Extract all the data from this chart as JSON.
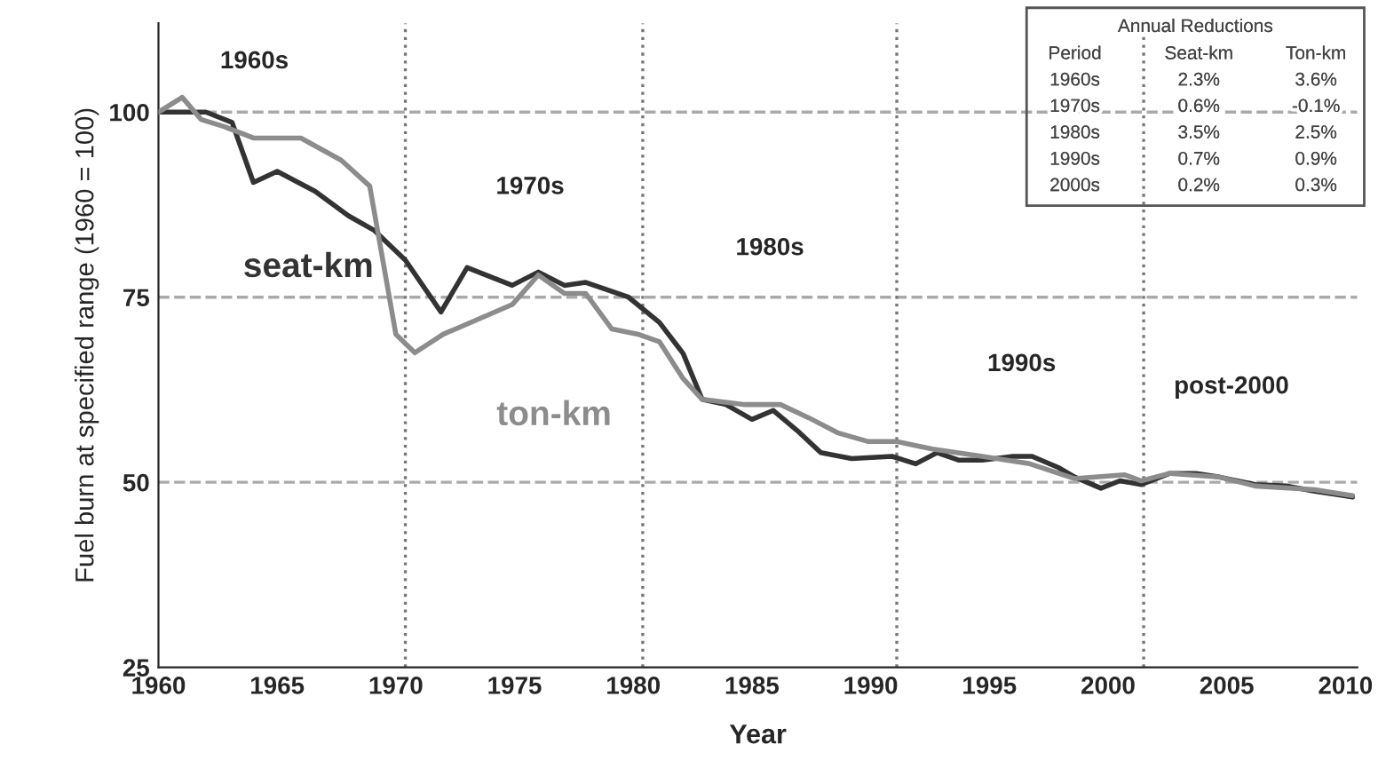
{
  "chart_data": {
    "type": "line",
    "xlabel": "Year",
    "ylabel": "Fuel burn at specified range (1960 = 100)",
    "xlim": [
      1960,
      2010.5
    ],
    "xticks": [
      1960,
      1965,
      1970,
      1975,
      1980,
      1985,
      1990,
      1995,
      2000,
      2005,
      2010
    ],
    "ylim": [
      25,
      112
    ],
    "yticks": [
      25,
      50,
      75,
      100
    ],
    "grid": false,
    "legend": false,
    "line_style": "solid",
    "marker": "none",
    "series": [
      {
        "name": "seat-km",
        "color": "#333333",
        "x": [
          1960,
          1962,
          1963.1,
          1964,
          1965,
          1966.6,
          1968,
          1969.1,
          1970.4,
          1971.9,
          1973,
          1974.9,
          1976,
          1977.1,
          1978,
          1979.8,
          1981.1,
          1982.1,
          1982.9,
          1983.9,
          1985,
          1985.9,
          1986.9,
          1987.9,
          1989.2,
          1990.9,
          1991.9,
          1992.8,
          1993.7,
          1994.7,
          1996,
          1996.8,
          1997.9,
          1998.6,
          1999.7,
          2000.5,
          2001.4,
          2002.6,
          2003.7,
          2004.7,
          2006.2,
          2007.5,
          2008.7,
          2009.7,
          2010.3
        ],
        "values": [
          100,
          100,
          98.6,
          90.5,
          92,
          89.3,
          86,
          84,
          80,
          73,
          79,
          76.6,
          78.4,
          76.6,
          77,
          75,
          71.6,
          67.4,
          61.2,
          60.5,
          58.5,
          59.7,
          57,
          54,
          53.2,
          53.5,
          52.5,
          54,
          53,
          53,
          53.5,
          53.5,
          52,
          50.7,
          49.2,
          50.2,
          49.7,
          51.2,
          51.2,
          50.7,
          49.7,
          49.5,
          48.8,
          48.3,
          48
        ]
      },
      {
        "name": "ton-km",
        "color": "#8c8c8c",
        "x": [
          1960,
          1961,
          1961.8,
          1962.8,
          1964,
          1966,
          1967.7,
          1968.9,
          1970,
          1970.8,
          1972,
          1974.9,
          1976,
          1977.1,
          1978,
          1979.1,
          1980.2,
          1981.1,
          1982.1,
          1982.9,
          1984.7,
          1986.2,
          1987.4,
          1988.6,
          1989.9,
          1991.1,
          1992.6,
          1994.7,
          1996.7,
          1998.6,
          2000.7,
          2001.4,
          2002.6,
          2004.7,
          2006.2,
          2008.7,
          2009.7,
          2010.3
        ],
        "values": [
          100,
          102,
          99,
          98,
          96.5,
          96.5,
          93.5,
          90,
          70,
          67.5,
          70,
          74,
          78,
          75.5,
          75.5,
          70.7,
          70,
          69,
          64,
          61.2,
          60.5,
          60.5,
          58.7,
          56.7,
          55.5,
          55.5,
          54.5,
          53.5,
          52.5,
          50.5,
          51,
          50.2,
          51.2,
          50.7,
          49.5,
          49,
          48.5,
          48.2
        ]
      }
    ],
    "ref_lines": [
      {
        "axis": "y",
        "value": 100,
        "color": "#aaaaaa",
        "line_style": "dashed"
      },
      {
        "axis": "y",
        "value": 75,
        "color": "#aaaaaa",
        "line_style": "dashed"
      },
      {
        "axis": "y",
        "value": 50,
        "color": "#aaaaaa",
        "line_style": "dashed"
      },
      {
        "axis": "x",
        "value": 1970.4,
        "color": "#777777",
        "line_style": "dotted"
      },
      {
        "axis": "x",
        "value": 1980.4,
        "color": "#777777",
        "line_style": "dotted"
      },
      {
        "axis": "x",
        "value": 1991.1,
        "color": "#777777",
        "line_style": "dotted"
      },
      {
        "axis": "x",
        "value": 2001.5,
        "color": "#777777",
        "line_style": "dotted"
      }
    ],
    "annotations": [
      "1960s",
      "1970s",
      "1980s",
      "1990s",
      "post-2000",
      "Annual Reductions",
      "Period",
      "Seat-km",
      "Ton-km",
      "1960s",
      "2.3%",
      "3.6%",
      "1970s",
      "0.6%",
      "-0.1%",
      "1980s",
      "3.5%",
      "2.5%",
      "1990s",
      "0.7%",
      "0.9%",
      "2000s",
      "0.2%",
      "0.3%"
    ]
  }
}
